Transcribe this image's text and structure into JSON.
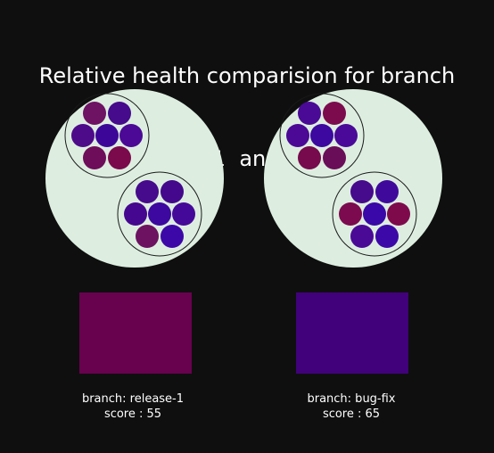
{
  "title": {
    "line1": "Relative health comparision for branch",
    "line2": "release-1  and  bug-fix"
  },
  "branches": [
    {
      "branch_text": "branch: release-1",
      "score_text": "score : 55",
      "score": 55,
      "swatch_color": "#68024f",
      "groups": [
        {
          "colors": [
            "#6e1264",
            "#460a8c",
            "#4e0b89",
            "#3c0799",
            "#4b0996",
            "#6e0d5a",
            "#7a0a4c"
          ]
        },
        {
          "colors": [
            "#460a8c",
            "#43088c",
            "#45078f",
            "#3d08a0",
            "#45099a",
            "#6c1260",
            "#3d08a8"
          ]
        }
      ]
    },
    {
      "branch_text": "branch: bug-fix",
      "score_text": "score : 65",
      "score": 65,
      "swatch_color": "#41017b",
      "groups": [
        {
          "colors": [
            "#4a0a96",
            "#7c0b4e",
            "#4b0996",
            "#3c08a0",
            "#4a0999",
            "#760a4c",
            "#6a0d58"
          ]
        },
        {
          "colors": [
            "#460a8c",
            "#3f0a9c",
            "#7c0a4e",
            "#3a08a8",
            "#7e0a4c",
            "#4a0a96",
            "#3d08a8"
          ]
        }
      ]
    }
  ],
  "colors": {
    "background": "#0f0f0f",
    "bubble_fill": "#ddeee0",
    "bubble_stroke": "#1a1a1a",
    "text": "#ffffff"
  }
}
